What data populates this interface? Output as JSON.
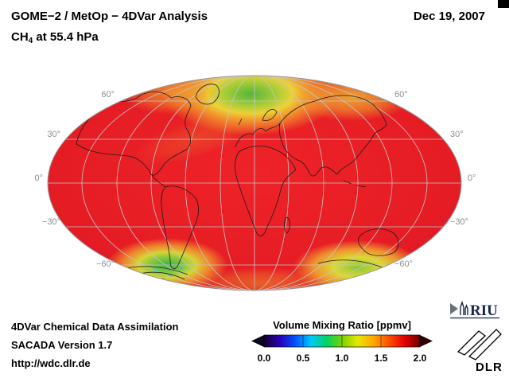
{
  "header": {
    "title": "GOME−2 / MetOp − 4DVar Analysis",
    "formula_prefix": "CH",
    "formula_sub": "4",
    "formula_suffix": " at 55.4 hPa",
    "date": "Dec 19, 2007"
  },
  "map": {
    "projection": "Mollweide",
    "lat_labels": [
      "60°",
      "30°",
      "0°",
      "−30°",
      "−60°"
    ]
  },
  "colorbar": {
    "title": "Volume Mixing Ratio [ppmv]",
    "ticks": [
      "0.0",
      "0.5",
      "1.0",
      "1.5",
      "2.0"
    ],
    "range_min": 0.0,
    "range_max": 2.0,
    "colors": [
      "#14002e",
      "#2a00b4",
      "#0050ff",
      "#00c8ff",
      "#00d264",
      "#78d200",
      "#e6e600",
      "#ffaa00",
      "#ff5000",
      "#e60000",
      "#6e0000"
    ]
  },
  "footer": {
    "line1": "4DVar Chemical Data Assimilation",
    "line2": "SACADA Version 1.7",
    "line3": "http://wdc.dlr.de"
  },
  "logos": {
    "riu": "RIU",
    "dlr": "DLR"
  },
  "chart_data": {
    "type": "heatmap",
    "title": "GOME−2 / MetOp − 4DVar Analysis, CH4 at 55.4 hPa",
    "date": "Dec 19, 2007",
    "projection": "Mollweide",
    "colorbar_label": "Volume Mixing Ratio [ppmv]",
    "colorbar_ticks": [
      0.0,
      0.5,
      1.0,
      1.5,
      2.0
    ],
    "value_range_ppmv": [
      0.0,
      2.0
    ],
    "graticule_lat_labels_deg": [
      60,
      30,
      0,
      -30,
      -60
    ],
    "field_summary": [
      {
        "region": "global tropics and mid-latitudes",
        "approx_value_ppmv": 1.6,
        "color": "red"
      },
      {
        "region": "north polar cap",
        "approx_value_ppmv": 1.0,
        "color": "green core with yellow-orange rim"
      },
      {
        "region": "south polar south-west patch",
        "approx_value_ppmv": 0.9,
        "color": "green with cyan-blue speckles"
      },
      {
        "region": "south polar south-east patch",
        "approx_value_ppmv": 1.1,
        "color": "yellow-green"
      }
    ]
  }
}
